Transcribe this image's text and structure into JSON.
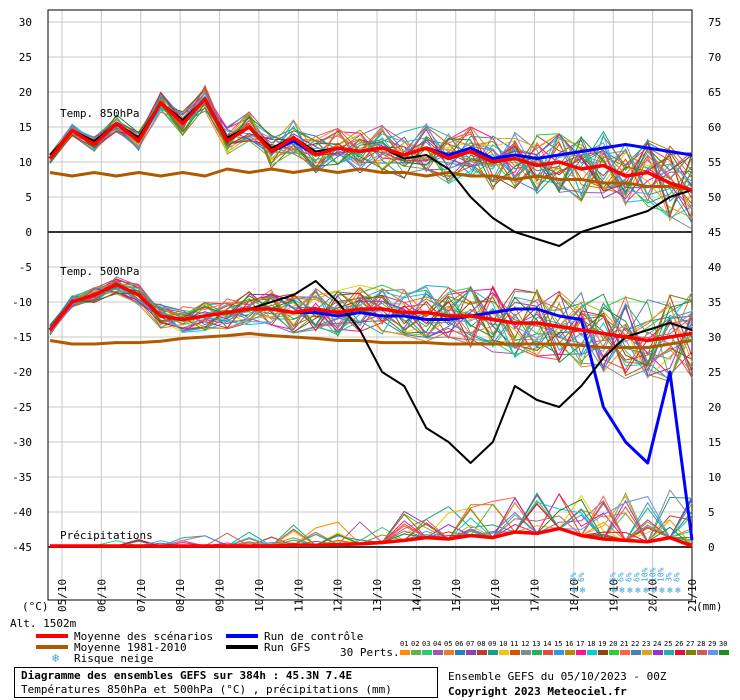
{
  "chart_data": {
    "type": "line",
    "x_ticks": [
      "05/10",
      "06/10",
      "07/10",
      "08/10",
      "09/10",
      "10/10",
      "11/10",
      "12/10",
      "13/10",
      "14/10",
      "15/10",
      "16/10",
      "17/10",
      "18/10",
      "19/10",
      "20/10",
      "21/10"
    ],
    "left_axis": {
      "unit": "(°C)",
      "ticks": [
        30,
        25,
        20,
        15,
        10,
        5,
        0,
        -5,
        -10,
        -15,
        -20,
        -25,
        -30,
        -35,
        -40,
        -45
      ]
    },
    "right_axis": {
      "unit": "(mm)",
      "ticks": [
        75,
        70,
        65,
        60,
        55,
        50,
        45,
        40,
        35,
        30,
        25,
        20,
        15,
        10,
        5,
        0
      ]
    },
    "panels": [
      {
        "label": "Temp. 850hPa",
        "series": [
          {
            "name": "Moyenne des scénarios",
            "color": "#ff0000",
            "values": [
              10.5,
              14.5,
              12.5,
              15.5,
              13,
              18.5,
              15.5,
              19,
              13,
              15,
              11.5,
              13.5,
              11,
              12,
              11.5,
              12,
              11,
              12,
              10.5,
              11.5,
              10,
              10.5,
              9.5,
              10,
              9,
              9.5,
              8,
              8.5,
              7,
              6
            ]
          },
          {
            "name": "Moyenne 1981-2010",
            "color": "#b05a00",
            "values": [
              8.5,
              8,
              8.5,
              8,
              8.5,
              8,
              8.5,
              8,
              9,
              8.5,
              9,
              8.5,
              9,
              8.5,
              9,
              8.5,
              8.5,
              8,
              8.5,
              8,
              8,
              7.5,
              8,
              7.5,
              7.5,
              7,
              7,
              6.5,
              6.5,
              6
            ]
          },
          {
            "name": "Run de contrôle",
            "color": "#0000ff",
            "values": [
              10.5,
              14.5,
              12.5,
              15.5,
              13,
              18.5,
              15.5,
              19,
              13,
              15,
              11.5,
              13,
              11,
              12,
              11.5,
              12,
              11,
              12,
              11,
              12,
              10.5,
              11,
              10.5,
              11,
              11.5,
              12,
              12.5,
              12,
              11.5,
              11
            ]
          },
          {
            "name": "Run GFS",
            "color": "#000000",
            "values": [
              11,
              14.5,
              13,
              15.5,
              13.5,
              18.5,
              16,
              19,
              13.5,
              15,
              12,
              13.5,
              11.5,
              12,
              11.5,
              12,
              10.5,
              11,
              9,
              5,
              2,
              0,
              -1,
              -2,
              0,
              1,
              2,
              3,
              5,
              6
            ]
          }
        ]
      },
      {
        "label": "Temp. 500hPa",
        "series": [
          {
            "name": "Moyenne des scénarios",
            "color": "#ff0000",
            "values": [
              -14,
              -10,
              -9,
              -7.5,
              -9,
              -12,
              -12.5,
              -12,
              -11.5,
              -11,
              -11,
              -11.5,
              -11,
              -11.5,
              -11,
              -11,
              -11.5,
              -11.5,
              -12,
              -12,
              -12.5,
              -13,
              -13,
              -13.5,
              -14,
              -14.5,
              -15,
              -15.5,
              -15,
              -14.5
            ]
          },
          {
            "name": "Moyenne 1981-2010",
            "color": "#b05a00",
            "values": [
              -15.5,
              -16,
              -16,
              -15.8,
              -15.8,
              -15.6,
              -15.2,
              -15,
              -14.8,
              -14.5,
              -14.8,
              -15,
              -15.2,
              -15.5,
              -15.5,
              -15.8,
              -15.8,
              -15.8,
              -16,
              -16,
              -16,
              -16,
              -16,
              -16,
              -16.2,
              -16.5,
              -16.5,
              -16.5,
              -16,
              -15.5
            ]
          },
          {
            "name": "Run de contrôle",
            "color": "#0000ff",
            "values": [
              -14,
              -10,
              -9,
              -7.5,
              -9,
              -12,
              -12.5,
              -12,
              -11.5,
              -11,
              -11,
              -11.5,
              -11.5,
              -12,
              -11.5,
              -12,
              -12,
              -12.5,
              -12.5,
              -12,
              -11.5,
              -11,
              -11,
              -12,
              -12.5,
              -25,
              -30,
              -33,
              -20,
              -44
            ]
          },
          {
            "name": "Run GFS",
            "color": "#000000",
            "values": [
              -14,
              -10,
              -9,
              -7.5,
              -9,
              -12,
              -12.5,
              -12,
              -11.5,
              -11,
              -10,
              -9,
              -7,
              -10,
              -14,
              -20,
              -22,
              -28,
              -30,
              -33,
              -30,
              -22,
              -24,
              -25,
              -22,
              -18,
              -15,
              -14,
              -13,
              -14
            ]
          }
        ]
      },
      {
        "label": "Précipitations",
        "unit": "mm",
        "series": [
          {
            "name": "Moyenne des scénarios",
            "color": "#ff0000",
            "values": [
              0,
              0,
              0,
              0,
              0,
              0,
              0,
              0,
              0,
              0,
              0,
              0.1,
              0.1,
              0.2,
              0.3,
              0.5,
              0.8,
              1.2,
              1,
              1.5,
              1.2,
              2,
              1.8,
              2.5,
              1.5,
              1,
              0.8,
              0.6,
              1.2,
              0
            ]
          }
        ]
      }
    ],
    "snow_risk": [
      {
        "date": "18/10",
        "values": [
          "3%",
          "6%"
        ]
      },
      {
        "date": "19/10",
        "values": [
          "6%",
          "6%",
          "6%",
          "6%",
          "10%",
          "10%",
          "10%",
          "3%",
          "6%"
        ]
      }
    ],
    "altitude": "Alt. 1502m"
  },
  "legend": {
    "mean": "Moyenne des scénarios",
    "control": "Run de contrôle",
    "clim": "Moyenne 1981-2010",
    "gfs": "Run GFS",
    "snow": "Risque neige",
    "perts": "30 Perts.",
    "pert_ids": [
      "01",
      "02",
      "03",
      "04",
      "05",
      "06",
      "07",
      "08",
      "09",
      "10",
      "11",
      "12",
      "13",
      "14",
      "15",
      "16",
      "17",
      "18",
      "19",
      "20",
      "21",
      "22",
      "23",
      "24",
      "25",
      "26",
      "27",
      "28",
      "29",
      "30"
    ],
    "pert_colors": [
      "#ff8c00",
      "#6ab04c",
      "#2ecc71",
      "#9b59b6",
      "#e67e22",
      "#2980b9",
      "#8e44ad",
      "#c0392b",
      "#16a085",
      "#f1c40f",
      "#d35400",
      "#7f8c8d",
      "#27ae60",
      "#e74c3c",
      "#3498db",
      "#b8860b",
      "#ff1493",
      "#00ced1",
      "#8b4513",
      "#32cd32",
      "#ff6347",
      "#4682b4",
      "#daa520",
      "#9932cc",
      "#20b2aa",
      "#dc143c",
      "#808000",
      "#cd5c5c",
      "#6495ed",
      "#228b22"
    ]
  },
  "footer": {
    "title": "Diagramme des ensembles GEFS sur 384h : 45.3N 7.4E",
    "subtitle": "Températures 850hPa et 500hPa (°C) , précipitations (mm)",
    "ensemble": "Ensemble GEFS du 05/10/2023 - 00Z",
    "copyright": "Copyright 2023 Meteociel.fr"
  }
}
